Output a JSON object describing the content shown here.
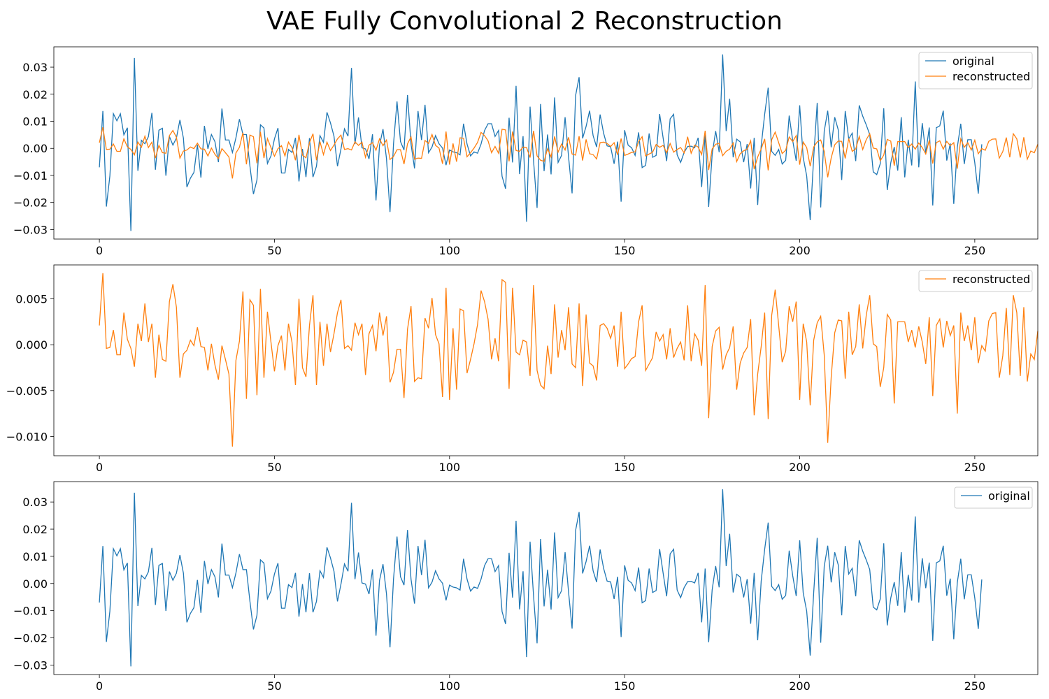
{
  "figure_title": "VAE Fully Convolutional 2 Reconstruction",
  "colors": {
    "original": "#1f77b4",
    "reconstructed": "#ff7f0e"
  },
  "chart_data": [
    {
      "type": "line",
      "title": "",
      "xlabel": "",
      "ylabel": "",
      "xlim": [
        -13,
        268
      ],
      "ylim": [
        -0.0335,
        0.0375
      ],
      "x_ticks": [
        0,
        50,
        100,
        150,
        200,
        250
      ],
      "y_ticks": [
        -0.03,
        -0.02,
        -0.01,
        0.0,
        0.01,
        0.02,
        0.03
      ],
      "y_tick_labels": [
        "−0.03",
        "−0.02",
        "−0.01",
        "0.00",
        "0.01",
        "0.02",
        "0.03"
      ],
      "grid": false,
      "legend_position": "top-right",
      "series": [
        {
          "name": "original",
          "source": "original",
          "color": "#1f77b4"
        },
        {
          "name": "reconstructed",
          "source": "reconstructed",
          "color": "#ff7f0e"
        }
      ]
    },
    {
      "type": "line",
      "title": "",
      "xlabel": "",
      "ylabel": "",
      "xlim": [
        -13,
        268
      ],
      "ylim": [
        -0.0121,
        0.0087
      ],
      "x_ticks": [
        0,
        50,
        100,
        150,
        200,
        250
      ],
      "y_ticks": [
        -0.01,
        -0.005,
        0.0,
        0.005
      ],
      "y_tick_labels": [
        "−0.010",
        "−0.005",
        "0.000",
        "0.005"
      ],
      "grid": false,
      "legend_position": "top-right",
      "series": [
        {
          "name": "reconstructed",
          "source": "reconstructed",
          "color": "#ff7f0e"
        }
      ]
    },
    {
      "type": "line",
      "title": "",
      "xlabel": "",
      "ylabel": "",
      "xlim": [
        -13,
        268
      ],
      "ylim": [
        -0.0335,
        0.0375
      ],
      "x_ticks": [
        0,
        50,
        100,
        150,
        200,
        250
      ],
      "y_ticks": [
        -0.03,
        -0.02,
        -0.01,
        0.0,
        0.01,
        0.02,
        0.03
      ],
      "y_tick_labels": [
        "−0.03",
        "−0.02",
        "−0.01",
        "0.00",
        "0.01",
        "0.02",
        "0.03"
      ],
      "grid": false,
      "legend_position": "top-right",
      "series": [
        {
          "name": "original",
          "source": "original",
          "color": "#1f77b4"
        }
      ]
    }
  ],
  "series_values": {
    "original": [
      -0.007,
      0.0138,
      -0.0215,
      -0.0102,
      0.0128,
      0.0102,
      0.0128,
      0.005,
      0.0076,
      -0.0305,
      0.0334,
      -0.0083,
      0.003,
      0.0017,
      0.0043,
      0.0131,
      -0.0079,
      0.0067,
      0.0074,
      -0.0101,
      0.0044,
      0.0012,
      0.0038,
      0.0105,
      0.0038,
      -0.0143,
      -0.011,
      -0.0089,
      0.0013,
      -0.0108,
      0.0083,
      -0.0002,
      0.0051,
      0.0025,
      -0.0051,
      0.0147,
      0.0031,
      0.0031,
      -0.0015,
      0.0039,
      0.0108,
      0.0051,
      0.0051,
      -0.0066,
      -0.0169,
      -0.0117,
      0.0087,
      0.0075,
      -0.0056,
      -0.0028,
      0.0035,
      0.0075,
      -0.0091,
      -0.0091,
      -0.0004,
      -0.0015,
      0.0039,
      -0.0122,
      -0.0002,
      -0.0106,
      0.0038,
      -0.0106,
      -0.0066,
      0.0047,
      0.0022,
      0.0133,
      0.0094,
      0.0045,
      -0.0066,
      -0.0002,
      0.0072,
      0.0045,
      0.0297,
      0.0016,
      0.0114,
      0.0002,
      -0.0002,
      -0.0039,
      0.0052,
      -0.0192,
      0.0011,
      0.0071,
      -0.0039,
      -0.0235,
      0.0016,
      0.0173,
      0.0025,
      -0.0006,
      0.0197,
      0.0016,
      -0.0074,
      0.0138,
      0.0031,
      0.0161,
      -0.0016,
      0.0005,
      0.0047,
      0.0017,
      0.0001,
      -0.0062,
      -0.0006,
      -0.0013,
      -0.0016,
      -0.0024,
      0.0091,
      0.0016,
      -0.0028,
      -0.0013,
      -0.0018,
      0.0016,
      0.0066,
      0.0091,
      0.0091,
      0.0044,
      0.0066,
      -0.0103,
      -0.0149,
      0.0113,
      -0.0052,
      0.0231,
      -0.0095,
      0.0045,
      -0.0271,
      0.0154,
      -0.0047,
      -0.022,
      0.0164,
      -0.0084,
      0.0051,
      -0.0096,
      0.0188,
      -0.0052,
      -0.0026,
      0.0115,
      -0.0033,
      -0.0166,
      0.0195,
      0.0263,
      0.0037,
      0.0081,
      0.0139,
      0.0047,
      0.0005,
      0.0125,
      0.0056,
      0.0009,
      0.0006,
      -0.0057,
      0.0025,
      -0.0197,
      0.0067,
      0.0012,
      0.0002,
      -0.0026,
      0.0059,
      -0.0071,
      -0.0063,
      0.0055,
      -0.0033,
      -0.0026,
      0.0127,
      0.0038,
      -0.0047,
      0.0109,
      0.0126,
      -0.0024,
      -0.0052,
      -0.0015,
      0.0007,
      0.0008,
      0.0002,
      0.0039,
      -0.0143,
      0.0055,
      -0.0216,
      -0.0023,
      0.0064,
      -0.0014,
      0.0347,
      0.0064,
      0.0183,
      -0.0033,
      0.0034,
      0.0024,
      -0.0051,
      0.0016,
      -0.0148,
      0.0039,
      -0.0209,
      0.0009,
      0.0126,
      0.0224,
      -0.0011,
      -0.0026,
      -0.0004,
      -0.0058,
      -0.0044,
      0.0121,
      0.0029,
      -0.0046,
      0.0159,
      -0.0034,
      -0.0102,
      -0.0265,
      -0.0033,
      0.0168,
      -0.0218,
      0.0063,
      0.0139,
      0.0004,
      0.0115,
      0.0069,
      -0.0117,
      0.0138,
      0.0035,
      0.0056,
      -0.0047,
      0.0159,
      0.0119,
      0.0087,
      0.0051,
      -0.0087,
      -0.0097,
      -0.0057,
      0.0148,
      -0.0154,
      -0.0054,
      0.0005,
      -0.0082,
      0.0115,
      -0.0107,
      0.0032,
      -0.0063,
      0.0247,
      -0.007,
      0.0093,
      -0.0017,
      0.0077,
      -0.0211,
      0.0076,
      0.0083,
      0.0139,
      -0.0045,
      0.0018,
      -0.0205,
      0.0003,
      0.0091,
      -0.0058,
      0.0032,
      0.0032,
      -0.0053,
      -0.0167,
      0.0015
    ],
    "reconstructed": [
      0.0021,
      0.0078,
      -0.0004,
      -0.0003,
      0.0016,
      -0.0011,
      -0.0011,
      0.0035,
      0.0006,
      -0.0004,
      -0.0024,
      0.0023,
      0.0004,
      0.0045,
      0.0003,
      0.0023,
      -0.0036,
      0.0011,
      -0.0016,
      -0.0018,
      0.0047,
      0.0066,
      0.0041,
      -0.0036,
      -0.001,
      -0.0006,
      0.0005,
      -0.0001,
      0.0019,
      -0.0002,
      -0.0003,
      -0.0028,
      0.0001,
      -0.0022,
      -0.0038,
      -0.0001,
      -0.0016,
      -0.0032,
      -0.0111,
      -0.0017,
      0.0004,
      0.0058,
      -0.0059,
      0.0049,
      0.0043,
      -0.0055,
      0.0061,
      -0.0036,
      0.0036,
      0.0003,
      -0.0029,
      -0.0001,
      0.001,
      -0.0028,
      0.0023,
      0.0003,
      -0.0044,
      0.005,
      -0.0025,
      -0.0035,
      0.0021,
      0.0054,
      -0.0044,
      0.0025,
      -0.0023,
      0.0023,
      -0.0008,
      0.0012,
      0.0035,
      0.0049,
      -0.0004,
      -0.0001,
      -0.0006,
      0.0024,
      0.0011,
      0.0023,
      -0.0033,
      0.0012,
      0.0021,
      -0.0007,
      0.0035,
      0.001,
      0.0031,
      -0.0041,
      -0.003,
      -0.0005,
      -0.0005,
      -0.0058,
      0.0017,
      0.0042,
      -0.004,
      -0.0036,
      -0.0037,
      0.0029,
      0.0018,
      0.0051,
      0.0011,
      0.0001,
      -0.0057,
      0.0062,
      -0.006,
      0.0018,
      -0.0049,
      0.0039,
      0.0037,
      -0.0031,
      -0.0016,
      0.0001,
      0.0022,
      0.0059,
      0.0047,
      0.0028,
      -0.0016,
      0.0007,
      -0.0018,
      0.0071,
      0.0068,
      -0.0048,
      0.0062,
      -0.0008,
      -0.0011,
      0.0005,
      0.0003,
      -0.0034,
      0.0065,
      -0.0028,
      -0.0044,
      -0.0048,
      -0.0001,
      -0.0032,
      0.0044,
      -0.0014,
      0.0016,
      -0.0006,
      0.0041,
      -0.0021,
      -0.0025,
      0.0045,
      -0.0045,
      0.0033,
      -0.002,
      -0.0023,
      -0.0039,
      0.0021,
      0.0023,
      0.0018,
      0.0007,
      0.0021,
      -0.0024,
      0.0036,
      -0.0026,
      -0.0021,
      -0.0015,
      -0.0013,
      0.0025,
      0.0043,
      -0.0028,
      -0.0021,
      -0.0014,
      0.0014,
      0.0004,
      0.0011,
      -0.0016,
      0.0018,
      -0.0014,
      -0.0004,
      0.0003,
      -0.0017,
      0.0043,
      -0.0018,
      0.0012,
      0.0005,
      -0.0023,
      0.0065,
      -0.008,
      -0.0002,
      0.0015,
      0.0019,
      -0.0027,
      -0.0011,
      -0.0003,
      0.002,
      -0.0049,
      -0.002,
      -0.0009,
      -0.0003,
      0.0028,
      -0.0077,
      -0.0032,
      -0.0002,
      0.0035,
      -0.0081,
      0.0032,
      0.006,
      0.0021,
      -0.0019,
      -0.0007,
      0.0042,
      0.0025,
      0.0047,
      -0.006,
      0.0023,
      0.0003,
      -0.0066,
      0.0005,
      0.0024,
      0.0031,
      -0.0011,
      -0.0107,
      -0.0035,
      0.0013,
      0.0027,
      0.0026,
      -0.0037,
      0.0036,
      -0.0011,
      -0.0002,
      0.0044,
      -0.0004,
      0.0032,
      0.0054,
      0.0001,
      -0.0002,
      -0.0046,
      -0.0025,
      0.0033,
      0.0027,
      -0.0064,
      0.0025,
      0.0025,
      0.0025,
      0.0003,
      0.0016,
      -0.0003,
      0.002,
      0.0003,
      -0.0021,
      0.003,
      -0.0056,
      0.0021,
      0.0028,
      -0.0003,
      0.0026,
      0.001,
      0.0021,
      -0.0075,
      0.0035,
      0.0004,
      0.0021,
      -0.0006,
      0.003,
      -0.002,
      -0.0001,
      -0.0007,
      0.0026,
      0.0034,
      0.0035,
      -0.0036,
      -0.0012,
      0.004,
      -0.0033,
      0.0054,
      0.0035,
      -0.0034,
      0.0041,
      -0.004,
      -0.001,
      -0.0016,
      0.0015
    ]
  }
}
